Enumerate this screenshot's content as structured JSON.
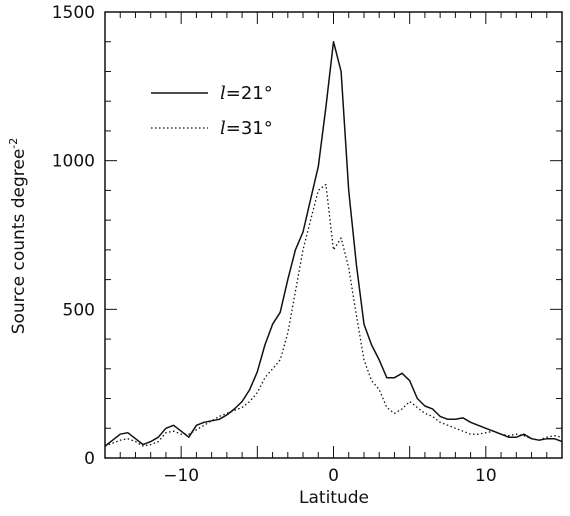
{
  "chart_data": {
    "type": "line",
    "xlabel": "Latitude",
    "ylabel": "Source counts degree",
    "ylabel_superscript": "-2",
    "xlim": [
      -15,
      15
    ],
    "ylim": [
      0,
      1500
    ],
    "x_ticks": [
      -10,
      0,
      10
    ],
    "y_ticks": [
      0,
      500,
      1000,
      1500
    ],
    "grid": false,
    "legend_position": "upper-left",
    "legend": [
      {
        "symbol": "l",
        "text": "=21°",
        "style": "solid"
      },
      {
        "symbol": "l",
        "text": "=31°",
        "style": "dotted"
      }
    ],
    "series": [
      {
        "name": "l=21°",
        "style": "solid",
        "x": [
          -15,
          -14.5,
          -14,
          -13.5,
          -13,
          -12.5,
          -12,
          -11.5,
          -11,
          -10.5,
          -10,
          -9.5,
          -9,
          -8.5,
          -8,
          -7.5,
          -7,
          -6.5,
          -6,
          -5.5,
          -5,
          -4.5,
          -4,
          -3.5,
          -3,
          -2.5,
          -2,
          -1.5,
          -1,
          -0.5,
          0,
          0.5,
          1,
          1.5,
          2,
          2.5,
          3,
          3.5,
          4,
          4.5,
          5,
          5.5,
          6,
          6.5,
          7,
          7.5,
          8,
          8.5,
          9,
          9.5,
          10,
          10.5,
          11,
          11.5,
          12,
          12.5,
          13,
          13.5,
          14,
          14.5,
          15
        ],
        "values": [
          40,
          60,
          80,
          85,
          65,
          45,
          55,
          70,
          100,
          110,
          90,
          70,
          110,
          120,
          125,
          130,
          145,
          165,
          190,
          230,
          290,
          380,
          450,
          490,
          600,
          700,
          760,
          870,
          980,
          1180,
          1400,
          1300,
          900,
          650,
          450,
          380,
          330,
          270,
          270,
          285,
          260,
          200,
          175,
          165,
          140,
          130,
          130,
          135,
          120,
          110,
          100,
          90,
          80,
          70,
          70,
          80,
          65,
          60,
          65,
          65,
          55
        ]
      },
      {
        "name": "l=31°",
        "style": "dotted",
        "x": [
          -15,
          -14.5,
          -14,
          -13.5,
          -13,
          -12.5,
          -12,
          -11.5,
          -11,
          -10.5,
          -10,
          -9.5,
          -9,
          -8.5,
          -8,
          -7.5,
          -7,
          -6.5,
          -6,
          -5.5,
          -5,
          -4.5,
          -4,
          -3.5,
          -3,
          -2.5,
          -2,
          -1.5,
          -1,
          -0.5,
          0,
          0.5,
          1,
          1.5,
          2,
          2.5,
          3,
          3.5,
          4,
          4.5,
          5,
          5.5,
          6,
          6.5,
          7,
          7.5,
          8,
          8.5,
          9,
          9.5,
          10,
          10.5,
          11,
          11.5,
          12,
          12.5,
          13,
          13.5,
          14,
          14.5,
          15
        ],
        "values": [
          40,
          50,
          60,
          65,
          55,
          40,
          45,
          55,
          85,
          90,
          80,
          80,
          95,
          110,
          125,
          140,
          150,
          160,
          170,
          190,
          220,
          270,
          300,
          330,
          420,
          560,
          700,
          800,
          900,
          920,
          700,
          740,
          640,
          480,
          330,
          260,
          230,
          170,
          150,
          165,
          190,
          170,
          150,
          140,
          120,
          110,
          100,
          90,
          80,
          80,
          85,
          90,
          80,
          75,
          80,
          75,
          65,
          60,
          70,
          75,
          70
        ]
      }
    ]
  }
}
